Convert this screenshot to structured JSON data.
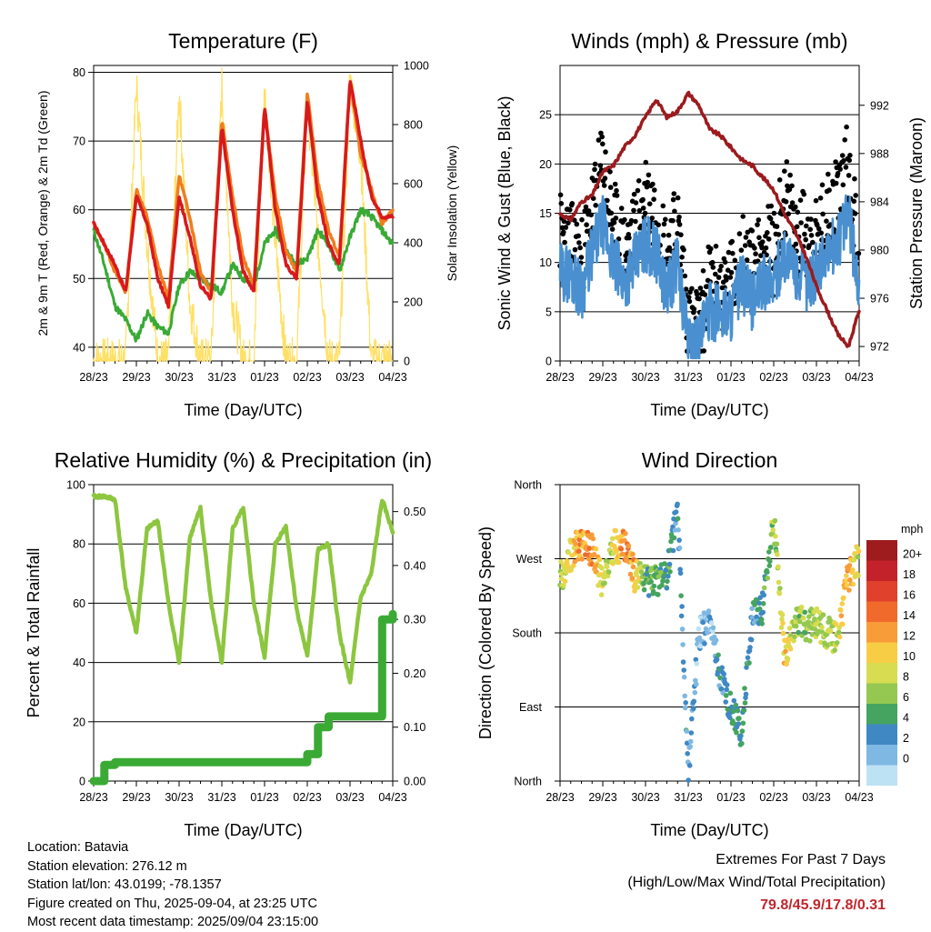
{
  "chart_data": [
    {
      "type": "line",
      "title": "Temperature (F)",
      "xlabel": "Time (Day/UTC)",
      "ylabel": "2m & 9m T (Red, Orange) & 2m Td (Green)",
      "ylabel_right": "Solar Insolation (Yellow)",
      "x_ticks": [
        "28/23",
        "29/23",
        "30/23",
        "31/23",
        "01/23",
        "02/23",
        "03/23",
        "04/23"
      ],
      "ylim": [
        38,
        81
      ],
      "y_ticks": [
        40,
        50,
        60,
        70,
        80
      ],
      "ylim_right": [
        0,
        1000
      ],
      "y_ticks_right": [
        0,
        200,
        400,
        600,
        800,
        1000
      ],
      "grid": "horizontal",
      "x_days": [
        0,
        0.25,
        0.5,
        0.75,
        1,
        1.25,
        1.5,
        1.75,
        2,
        2.25,
        2.5,
        2.75,
        3,
        3.25,
        3.5,
        3.75,
        4,
        4.25,
        4.5,
        4.75,
        5,
        5.25,
        5.5,
        5.75,
        6,
        6.25,
        6.5,
        6.75,
        7
      ],
      "series": [
        {
          "color": "#d7191c",
          "values": [
            58,
            55,
            52,
            48,
            62,
            58,
            50,
            46,
            62,
            56,
            49,
            47,
            72,
            60,
            51,
            48,
            75,
            60,
            52,
            50,
            76,
            62,
            55,
            52,
            79,
            70,
            62,
            59,
            59
          ]
        },
        {
          "color": "#f07d1e",
          "values": [
            58,
            55,
            51,
            48,
            63,
            59,
            52,
            47,
            65,
            59,
            51,
            48,
            73,
            62,
            53,
            49,
            75,
            62,
            54,
            51,
            77,
            64,
            57,
            53,
            79,
            68,
            63,
            58,
            60
          ]
        },
        {
          "color": "#39aa35",
          "values": [
            57,
            52,
            46,
            44,
            41,
            45,
            43,
            42,
            49,
            51,
            50,
            49,
            48,
            52,
            50,
            49,
            55,
            57,
            54,
            52,
            53,
            57,
            55,
            51,
            56,
            60,
            59,
            57,
            55
          ]
        },
        {
          "color": "#ffe066",
          "values": [
            0,
            0,
            0,
            0,
            940,
            400,
            0,
            0,
            920,
            200,
            0,
            0,
            930,
            200,
            0,
            0,
            920,
            400,
            0,
            0,
            890,
            400,
            0,
            0,
            960,
            700,
            0,
            0,
            0
          ]
        }
      ]
    },
    {
      "type": "scatter",
      "title": "Winds (mph) & Pressure (mb)",
      "xlabel": "Time (Day/UTC)",
      "ylabel": "Sonic Wind & Gust (Blue, Black)",
      "ylabel_right": "Station Pressure (Maroon)",
      "x_ticks": [
        "28/23",
        "29/23",
        "30/23",
        "31/23",
        "01/23",
        "02/23",
        "03/23",
        "04/23"
      ],
      "ylim": [
        0,
        30
      ],
      "y_ticks": [
        0,
        5,
        10,
        15,
        20,
        25
      ],
      "ylim_right": [
        970.8,
        995.3
      ],
      "y_ticks_right": [
        972,
        976,
        980,
        984,
        988,
        992
      ],
      "grid": "horizontal",
      "x_days": [
        0,
        0.25,
        0.5,
        0.75,
        1,
        1.25,
        1.5,
        1.75,
        2,
        2.25,
        2.5,
        2.75,
        3,
        3.25,
        3.5,
        3.75,
        4,
        4.25,
        4.5,
        4.75,
        5,
        5.25,
        5.5,
        5.75,
        6,
        6.25,
        6.5,
        6.75,
        7
      ],
      "series": [
        {
          "color": "#000000",
          "values": [
            13,
            12,
            10,
            15,
            20,
            14,
            11,
            13,
            17,
            15,
            11,
            14,
            4,
            3,
            8,
            7,
            8,
            11,
            9,
            12,
            11,
            17,
            13,
            13,
            12,
            15,
            17,
            20,
            11
          ]
        },
        {
          "color": "#4a90d0",
          "values": [
            9,
            9,
            7,
            11,
            14,
            10,
            8,
            10,
            12,
            11,
            7,
            10,
            2,
            2,
            5,
            5,
            5,
            8,
            6,
            8,
            8,
            11,
            9,
            8,
            9,
            11,
            12,
            15,
            7
          ]
        },
        {
          "color": "#9b1b1e",
          "values": [
            983,
            982.5,
            984,
            984.5,
            986.5,
            987,
            988.5,
            989.5,
            991,
            992.5,
            991,
            991.5,
            993,
            992,
            990,
            989.5,
            988.5,
            987.5,
            987,
            986,
            985,
            983,
            981.5,
            979.5,
            977,
            975,
            973,
            972,
            975
          ]
        }
      ]
    },
    {
      "type": "line",
      "title": "Relative Humidity (%) & Precipitation (in)",
      "xlabel": "Time (Day/UTC)",
      "ylabel": "Percent & Total Rainfall",
      "x_ticks": [
        "28/23",
        "29/23",
        "30/23",
        "31/23",
        "01/23",
        "02/23",
        "03/23",
        "04/23"
      ],
      "ylim": [
        0,
        100
      ],
      "y_ticks": [
        0,
        20,
        40,
        60,
        80,
        100
      ],
      "ylim_right": [
        0,
        0.55
      ],
      "y_ticks_right": [
        "0.00",
        "0.10",
        "0.20",
        "0.30",
        "0.40",
        "0.50"
      ],
      "grid": "horizontal",
      "x_days": [
        0,
        0.25,
        0.5,
        0.75,
        1,
        1.25,
        1.5,
        1.75,
        2,
        2.25,
        2.5,
        2.75,
        3,
        3.25,
        3.5,
        3.75,
        4,
        4.25,
        4.5,
        4.75,
        5,
        5.25,
        5.5,
        5.75,
        6,
        6.25,
        6.5,
        6.75,
        7
      ],
      "series": [
        {
          "color": "#8cc63f",
          "values": [
            96,
            96,
            95,
            65,
            50,
            85,
            88,
            60,
            40,
            82,
            92,
            60,
            40,
            85,
            92,
            60,
            42,
            80,
            86,
            58,
            42,
            78,
            80,
            50,
            33,
            62,
            70,
            95,
            84
          ]
        },
        {
          "color": "#3aaa35",
          "values": [
            0,
            0.03,
            0.035,
            0.035,
            0.035,
            0.035,
            0.035,
            0.035,
            0.035,
            0.035,
            0.035,
            0.035,
            0.035,
            0.035,
            0.035,
            0.035,
            0.035,
            0.035,
            0.035,
            0.035,
            0.05,
            0.1,
            0.12,
            0.12,
            0.12,
            0.12,
            0.12,
            0.3,
            0.31
          ]
        }
      ]
    },
    {
      "type": "scatter",
      "title": "Wind Direction",
      "xlabel": "Time (Day/UTC)",
      "ylabel": "Direction (Colored By Speed)",
      "x_ticks": [
        "28/23",
        "29/23",
        "30/23",
        "31/23",
        "01/23",
        "02/23",
        "03/23",
        "04/23"
      ],
      "y_ticks": [
        "North",
        "East",
        "South",
        "West",
        "North"
      ],
      "ylim": [
        0,
        360
      ],
      "grid": "horizontal",
      "legend": {
        "title": "mph",
        "placement": "right",
        "labels": [
          "20+",
          "18",
          "16",
          "14",
          "12",
          "10",
          "8",
          "6",
          "4",
          "2",
          "0"
        ],
        "colors": [
          "#9e1b1e",
          "#c4222b",
          "#e0412c",
          "#f06a2c",
          "#f89c3a",
          "#f8cd46",
          "#d8dc50",
          "#94c850",
          "#45a460",
          "#3f88c4",
          "#7fb8e2",
          "#bde2f4"
        ]
      },
      "x_days": [
        0,
        0.25,
        0.5,
        0.75,
        1,
        1.25,
        1.5,
        1.75,
        2,
        2.25,
        2.5,
        2.75,
        3,
        3.25,
        3.5,
        3.75,
        4,
        4.25,
        4.5,
        4.75,
        5,
        5.25,
        5.5,
        5.75,
        6,
        6.25,
        6.5,
        6.75,
        7
      ],
      "direction": [
        245,
        275,
        290,
        280,
        240,
        285,
        285,
        250,
        240,
        245,
        250,
        330,
        10,
        180,
        190,
        130,
        90,
        60,
        200,
        210,
        320,
        150,
        195,
        190,
        190,
        180,
        175,
        250,
        270
      ],
      "speed": [
        10,
        11,
        14,
        15,
        9,
        10,
        15,
        13,
        6,
        7,
        6,
        4,
        3,
        2,
        2,
        4,
        5,
        5,
        4,
        5,
        8,
        12,
        9,
        8,
        9,
        8,
        10,
        14,
        10
      ]
    }
  ],
  "station": {
    "location": "Location: Batavia",
    "elevation": "Station elevation: 276.12 m",
    "latlon": "Station lat/lon: 43.0199; -78.1357",
    "created": "Figure created on Thu, 2025-09-04, at 23:25 UTC",
    "recent": "Most recent data timestamp: 2025/09/04 23:15:00"
  },
  "extremes": {
    "title": "Extremes For Past 7 Days",
    "subtitle": "(High/Low/Max Wind/Total Precipitation)",
    "values": "79.8/45.9/17.8/0.31"
  }
}
